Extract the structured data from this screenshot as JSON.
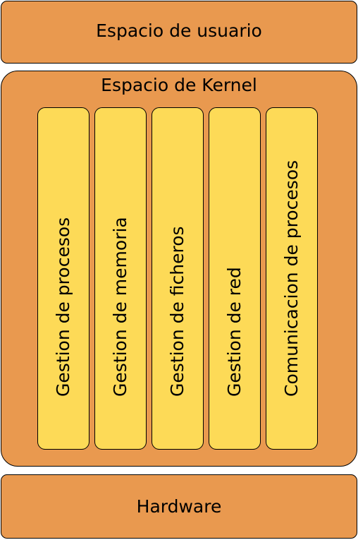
{
  "colors": {
    "layer_fill": "#E9994F",
    "subsystem_fill": "#FDDA57",
    "border": "#000000"
  },
  "user_space": {
    "label": "Espacio de usuario"
  },
  "kernel_space": {
    "label": "Espacio de Kernel",
    "subsystems": [
      {
        "label": "Gestion de procesos"
      },
      {
        "label": "Gestion de memoria"
      },
      {
        "label": "Gestion de ficheros"
      },
      {
        "label": "Gestion de red"
      },
      {
        "label": "Comunicacion de procesos"
      }
    ]
  },
  "hardware": {
    "label": "Hardware"
  }
}
